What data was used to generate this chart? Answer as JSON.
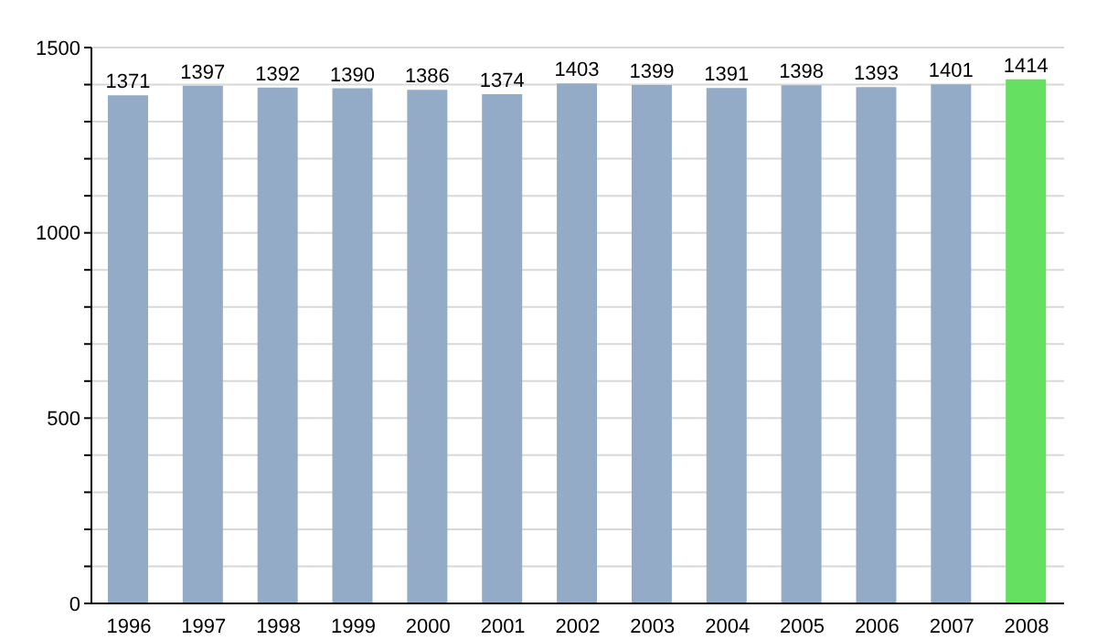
{
  "chart_data": {
    "type": "bar",
    "categories": [
      "1996",
      "1997",
      "1998",
      "1999",
      "2000",
      "2001",
      "2002",
      "2003",
      "2004",
      "2005",
      "2006",
      "2007",
      "2008"
    ],
    "values": [
      1371,
      1397,
      1392,
      1390,
      1386,
      1374,
      1403,
      1399,
      1391,
      1398,
      1393,
      1401,
      1414
    ],
    "colors": [
      "#94abc8",
      "#94abc8",
      "#94abc8",
      "#94abc8",
      "#94abc8",
      "#94abc8",
      "#94abc8",
      "#94abc8",
      "#94abc8",
      "#94abc8",
      "#94abc8",
      "#94abc8",
      "#66e060"
    ],
    "ylim": [
      0,
      1500
    ],
    "yticks": [
      0,
      {
        "value": 100,
        "label": null
      },
      {
        "value": 200,
        "label": null
      },
      {
        "value": 300,
        "label": null
      },
      {
        "value": 400,
        "label": null
      },
      500,
      {
        "value": 600,
        "label": null
      },
      {
        "value": 700,
        "label": null
      },
      {
        "value": 800,
        "label": null
      },
      {
        "value": 900,
        "label": null
      },
      1000,
      {
        "value": 1100,
        "label": null
      },
      {
        "value": 1200,
        "label": null
      },
      {
        "value": 1300,
        "label": null
      },
      {
        "value": 1400,
        "label": null
      },
      1500
    ],
    "grid": "y",
    "data_labels": true
  }
}
